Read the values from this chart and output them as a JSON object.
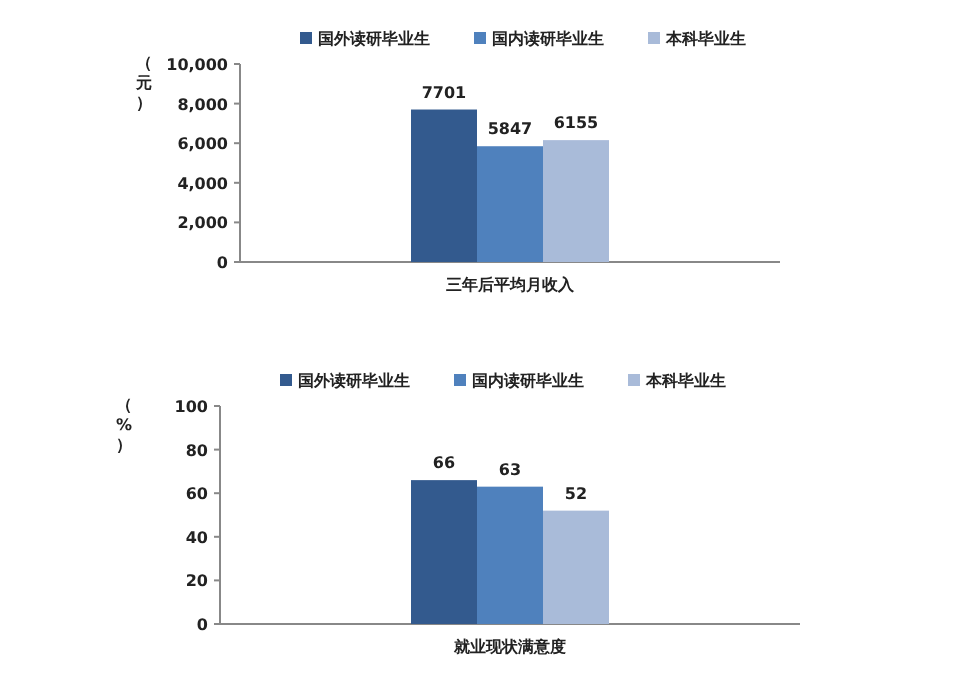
{
  "chart_data": [
    {
      "type": "bar",
      "ylabel": "（元）",
      "categories": [
        "三年后平均月收入"
      ],
      "series": [
        {
          "name": "国外读研毕业生",
          "color": "#335a8e",
          "values": [
            7701
          ]
        },
        {
          "name": "国内读研毕业生",
          "color": "#4f81bd",
          "values": [
            5847
          ]
        },
        {
          "name": "本科毕业生",
          "color": "#a9bbd9",
          "values": [
            6155
          ]
        }
      ],
      "ylim": [
        0,
        10000
      ],
      "yticks": [
        0,
        {
          "value": 2000,
          "label": "2,000"
        },
        {
          "value": 4000,
          "label": "4,000"
        },
        {
          "value": 6000,
          "label": "6,000"
        },
        {
          "value": 8000,
          "label": "8,000"
        },
        {
          "value": 10000,
          "label": "10,000"
        }
      ],
      "legend": "top",
      "data_labels": true
    },
    {
      "type": "bar",
      "ylabel": "（%）",
      "categories": [
        "就业现状满意度"
      ],
      "series": [
        {
          "name": "国外读研毕业生",
          "color": "#335a8e",
          "values": [
            66
          ]
        },
        {
          "name": "国内读研毕业生",
          "color": "#4f81bd",
          "values": [
            63
          ]
        },
        {
          "name": "本科毕业生",
          "color": "#a9bbd9",
          "values": [
            52
          ]
        }
      ],
      "ylim": [
        0,
        100
      ],
      "yticks": [
        0,
        20,
        40,
        60,
        80,
        100
      ],
      "legend": "top",
      "data_labels": true
    }
  ]
}
